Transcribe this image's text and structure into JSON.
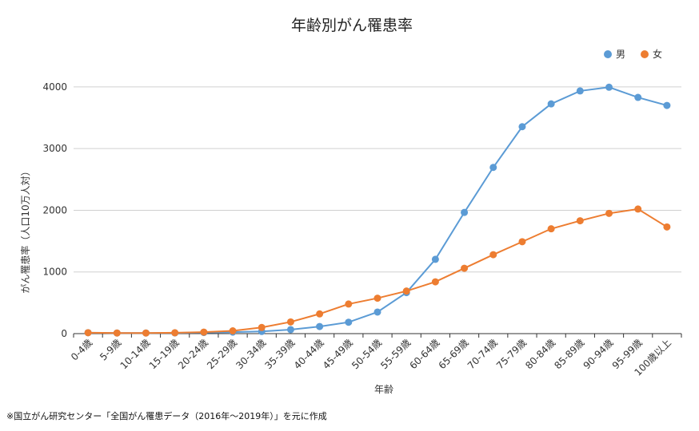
{
  "chart_data": {
    "type": "line",
    "title": "年齢別がん罹患率",
    "xlabel": "年齢",
    "ylabel": "がん罹患率（人口10万人対）",
    "ylim": [
      0,
      4400
    ],
    "yticks": [
      0,
      1000,
      2000,
      3000,
      4000
    ],
    "grid": true,
    "legend_position": "top-right",
    "categories": [
      "0-4歳",
      "5-9歳",
      "10-14歳",
      "15-19歳",
      "20-24歳",
      "25-29歳",
      "30-34歳",
      "35-39歳",
      "40-44歳",
      "45-49歳",
      "50-54歳",
      "55-59歳",
      "60-64歳",
      "65-69歳",
      "70-74歳",
      "75-79歳",
      "80-84歳",
      "85-89歳",
      "90-94歳",
      "95-99歳",
      "100歳以上"
    ],
    "series": [
      {
        "name": "男",
        "color": "#5b9bd5",
        "values": [
          15,
          10,
          10,
          12,
          18,
          25,
          35,
          65,
          115,
          185,
          350,
          665,
          1205,
          1965,
          2695,
          3355,
          3725,
          3935,
          3995,
          3830,
          3700
        ]
      },
      {
        "name": "女",
        "color": "#ed7d31",
        "values": [
          15,
          10,
          10,
          14,
          25,
          45,
          100,
          190,
          320,
          480,
          575,
          690,
          840,
          1060,
          1280,
          1490,
          1700,
          1830,
          1950,
          2020,
          1730
        ]
      }
    ]
  },
  "source_note": "※国立がん研究センター「全国がん罹患データ（2016年〜2019年）」を元に作成"
}
